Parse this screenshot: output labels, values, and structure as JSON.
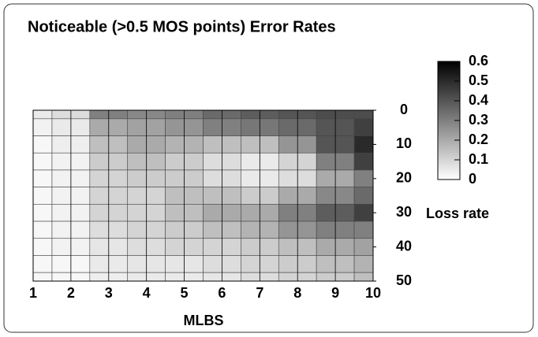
{
  "chart_data": {
    "type": "heatmap",
    "title": "Noticeable (>0.5 MOS points) Error Rates",
    "x_label": "MLBS",
    "y_label": "Loss rate",
    "x": [
      1,
      2,
      3,
      4,
      5,
      6,
      7,
      8,
      9,
      10
    ],
    "y": [
      0,
      5,
      10,
      15,
      20,
      25,
      30,
      35,
      40,
      45,
      50
    ],
    "z": [
      [
        0.05,
        0.08,
        0.3,
        0.28,
        0.3,
        0.35,
        0.38,
        0.4,
        0.42,
        0.42
      ],
      [
        0.03,
        0.05,
        0.2,
        0.22,
        0.25,
        0.3,
        0.32,
        0.35,
        0.4,
        0.45
      ],
      [
        0.02,
        0.04,
        0.15,
        0.2,
        0.18,
        0.15,
        0.15,
        0.25,
        0.4,
        0.5
      ],
      [
        0.02,
        0.03,
        0.12,
        0.15,
        0.12,
        0.08,
        0.05,
        0.1,
        0.3,
        0.45
      ],
      [
        0.02,
        0.03,
        0.1,
        0.12,
        0.12,
        0.08,
        0.05,
        0.08,
        0.2,
        0.3
      ],
      [
        0.02,
        0.03,
        0.1,
        0.1,
        0.15,
        0.15,
        0.12,
        0.2,
        0.28,
        0.35
      ],
      [
        0.02,
        0.03,
        0.1,
        0.1,
        0.15,
        0.2,
        0.2,
        0.3,
        0.38,
        0.45
      ],
      [
        0.02,
        0.03,
        0.08,
        0.1,
        0.12,
        0.15,
        0.18,
        0.25,
        0.3,
        0.3
      ],
      [
        0.02,
        0.03,
        0.06,
        0.08,
        0.1,
        0.1,
        0.12,
        0.15,
        0.2,
        0.22
      ],
      [
        0.02,
        0.02,
        0.05,
        0.06,
        0.06,
        0.08,
        0.1,
        0.12,
        0.15,
        0.18
      ],
      [
        0.02,
        0.02,
        0.04,
        0.05,
        0.05,
        0.06,
        0.08,
        0.1,
        0.12,
        0.15
      ]
    ],
    "xlim": [
      1,
      10
    ],
    "xticks": [
      1,
      2,
      3,
      4,
      5,
      6,
      7,
      8,
      9,
      10
    ],
    "ylim": [
      0,
      50
    ],
    "yticks": [
      0,
      10,
      20,
      30,
      40,
      50
    ],
    "y_inverted": true,
    "zlim": [
      0,
      0.6
    ],
    "zticks": [
      0,
      0.1,
      0.2,
      0.3,
      0.4,
      0.5,
      0.6
    ]
  }
}
